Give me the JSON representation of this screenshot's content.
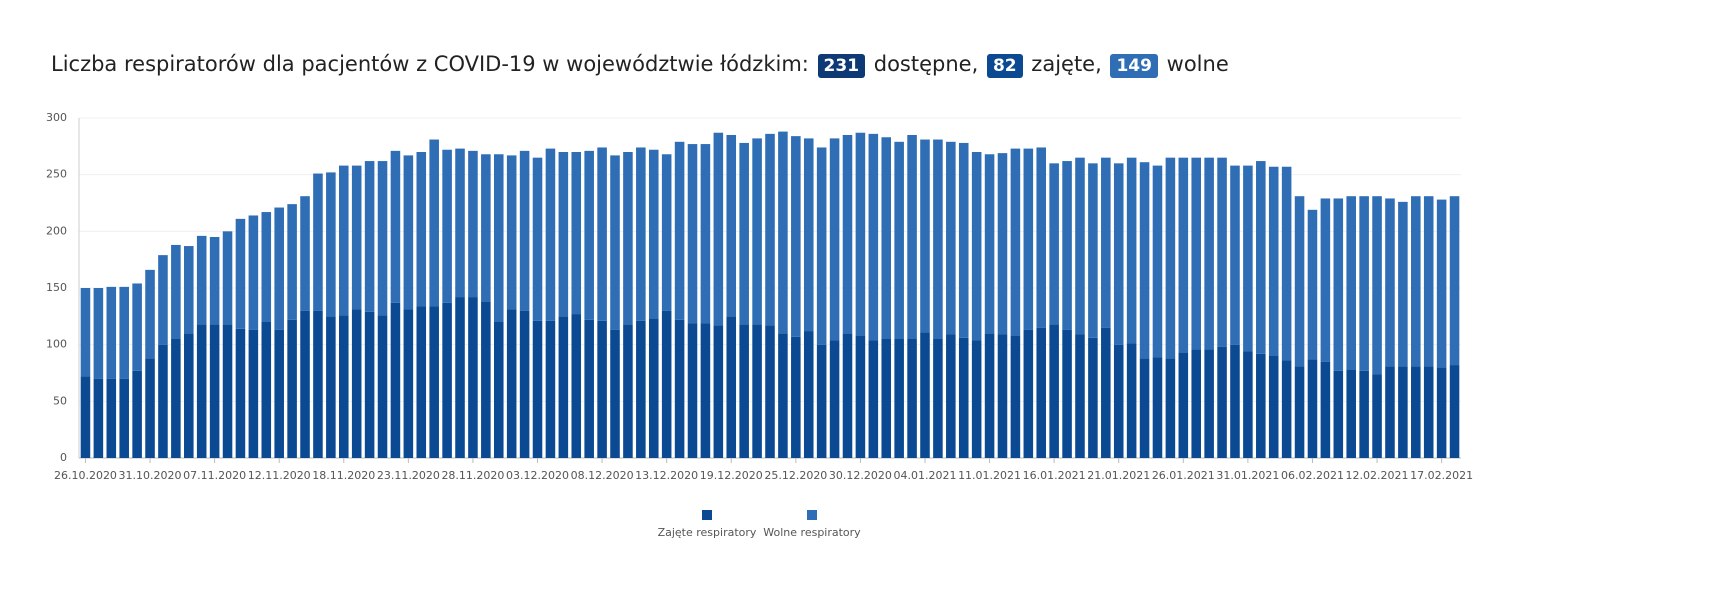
{
  "chart_data": {
    "type": "stacked_bar",
    "title": "Liczba respiratorów dla pacjentów z COVID-19 w województwie łódzkim:",
    "badges": [
      {
        "value": 231,
        "label": "dostępne,",
        "color": "#0d3a74"
      },
      {
        "value": 82,
        "label": "zajęte,",
        "color": "#0b4a93"
      },
      {
        "value": 149,
        "label": "wolne",
        "color": "#2f6db5"
      }
    ],
    "categories": [
      "26.10.2020",
      null,
      null,
      null,
      null,
      "31.10.2020",
      null,
      null,
      null,
      null,
      "07.11.2020",
      null,
      null,
      null,
      null,
      "12.11.2020",
      null,
      null,
      null,
      null,
      "18.11.2020",
      null,
      null,
      null,
      null,
      "23.11.2020",
      null,
      null,
      null,
      null,
      "28.11.2020",
      null,
      null,
      null,
      null,
      "03.12.2020",
      null,
      null,
      null,
      null,
      "08.12.2020",
      null,
      null,
      null,
      null,
      "13.12.2020",
      null,
      null,
      null,
      null,
      "19.12.2020",
      null,
      null,
      null,
      null,
      "25.12.2020",
      null,
      null,
      null,
      null,
      "30.12.2020",
      null,
      null,
      null,
      null,
      "04.01.2021",
      null,
      null,
      null,
      null,
      "11.01.2021",
      null,
      null,
      null,
      null,
      "16.01.2021",
      null,
      null,
      null,
      null,
      "21.01.2021",
      null,
      null,
      null,
      null,
      "26.01.2021",
      null,
      null,
      null,
      null,
      "31.01.2021",
      null,
      null,
      null,
      null,
      "06.02.2021",
      null,
      null,
      null,
      null,
      "12.02.2021",
      null,
      null,
      null,
      null,
      "17.02.2021",
      null
    ],
    "series": [
      {
        "name": "Zajęte respiratory",
        "color": "#0b4a93",
        "values": [
          72,
          70,
          70,
          70,
          77,
          88,
          100,
          105,
          110,
          118,
          118,
          118,
          114,
          113,
          120,
          113,
          122,
          130,
          130,
          125,
          126,
          131,
          129,
          126,
          137,
          131,
          134,
          134,
          137,
          142,
          142,
          138,
          120,
          131,
          130,
          121,
          121,
          125,
          127,
          122,
          121,
          113,
          118,
          121,
          123,
          130,
          122,
          119,
          119,
          117,
          125,
          118,
          118,
          117,
          110,
          107,
          112,
          100,
          104,
          110,
          108,
          104,
          105,
          105,
          105,
          111,
          105,
          109,
          106,
          104,
          110,
          109,
          108,
          113,
          115,
          118,
          113,
          109,
          106,
          115,
          100,
          101,
          88,
          89,
          88,
          93,
          96,
          96,
          98,
          100,
          94,
          92,
          90,
          86,
          81,
          87,
          85,
          77,
          78,
          77,
          74,
          81,
          81,
          81,
          81,
          80,
          82
        ]
      },
      {
        "name": "Wolne respiratory",
        "color": "#2f6db5",
        "values": [
          78,
          80,
          81,
          81,
          77,
          78,
          79,
          83,
          77,
          78,
          77,
          82,
          97,
          101,
          97,
          108,
          102,
          101,
          121,
          127,
          132,
          127,
          133,
          136,
          134,
          136,
          136,
          147,
          135,
          131,
          129,
          130,
          148,
          136,
          141,
          144,
          152,
          145,
          143,
          149,
          153,
          154,
          152,
          153,
          149,
          138,
          157,
          158,
          158,
          170,
          160,
          160,
          164,
          169,
          178,
          177,
          170,
          174,
          178,
          175,
          179,
          182,
          178,
          174,
          180,
          170,
          176,
          170,
          172,
          166,
          158,
          160,
          165,
          160,
          159,
          142,
          149,
          156,
          154,
          150,
          160,
          164,
          173,
          169,
          177,
          172,
          169,
          169,
          167,
          158,
          164,
          170,
          167,
          171,
          150,
          132,
          144,
          152,
          153,
          154,
          157,
          148,
          145,
          150,
          150,
          148,
          149
        ]
      }
    ],
    "ylim": [
      0,
      300
    ],
    "yticks": [
      0,
      50,
      100,
      150,
      200,
      250,
      300
    ],
    "grid": true
  }
}
